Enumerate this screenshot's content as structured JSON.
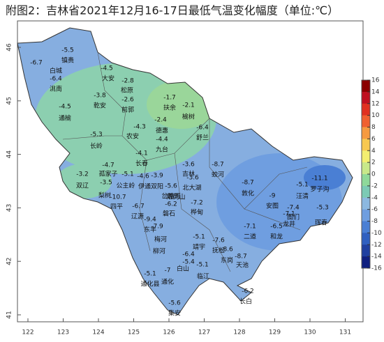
{
  "title": "附图2：吉林省2021年12月16-17日最低气温变化幅度（单位:℃）",
  "map": {
    "xticks": [
      122,
      123,
      124,
      125,
      126,
      127,
      128,
      129,
      130,
      131
    ],
    "yticks": [
      41,
      42,
      43,
      44,
      45,
      46
    ],
    "stations": [
      {
        "label": "镇赉",
        "value": -5.5
      },
      {
        "label": "白城",
        "value": -6.7
      },
      {
        "label": "洮南",
        "value": -6.4
      },
      {
        "label": "大安",
        "value": -4.5
      },
      {
        "label": "松原",
        "value": -2.8
      },
      {
        "label": "乾安",
        "value": -3.8
      },
      {
        "label": "前郭",
        "value": -2.6
      },
      {
        "label": "通榆",
        "value": -4.5
      },
      {
        "label": "扶余",
        "value": -1.7
      },
      {
        "label": "榆树",
        "value": -2.1
      },
      {
        "label": "德惠",
        "value": -2.4
      },
      {
        "label": "农安",
        "value": -4.3
      },
      {
        "label": "舒兰",
        "value": -6.4
      },
      {
        "label": "长岭",
        "value": -5.3
      },
      {
        "label": "九台",
        "value": -4.4
      },
      {
        "label": "长春",
        "value": -4.1
      },
      {
        "label": "吉林",
        "value": -3.6
      },
      {
        "label": "蛟河",
        "value": -8.7
      },
      {
        "label": "敦化",
        "value": -8.7
      },
      {
        "label": "双辽",
        "value": -3.2
      },
      {
        "label": "孤家子",
        "value": -4.7
      },
      {
        "label": "公主岭",
        "value": -3.5
      },
      {
        "value": -5.1
      },
      {
        "label": "伊通",
        "value": -4.6
      },
      {
        "label": "双阳",
        "value": -3.9
      },
      {
        "label": "岔路河",
        "value": -5.6
      },
      {
        "label": "北大湖",
        "value": -3.6
      },
      {
        "label": "梨树",
        "value": -10.7
      },
      {
        "label": "四平"
      },
      {
        "label": "辽源",
        "value": -6.7
      },
      {
        "label": "磐石",
        "value": -6.2
      },
      {
        "label": "烟筒山"
      },
      {
        "label": "桦甸",
        "value": -7.2
      },
      {
        "label": "安图",
        "value": -9
      },
      {
        "label": "汪清",
        "value": -5.1
      },
      {
        "label": "罗子沟",
        "value": -11.1
      },
      {
        "label": "图们",
        "value": -7.4
      },
      {
        "label": "珲春",
        "value": -5.3
      },
      {
        "label": "龙井",
        "value": -7.1
      },
      {
        "label": "东丰",
        "value": -9.4
      },
      {
        "label": "梅河",
        "value": -7.9
      },
      {
        "label": "二道",
        "value": -7.1
      },
      {
        "label": "和龙",
        "value": -6.5
      },
      {
        "label": "靖宇",
        "value": -5.1
      },
      {
        "label": "抚松",
        "value": -7.6
      },
      {
        "label": "东岗",
        "value": -8.6
      },
      {
        "label": "天池",
        "value": -8.7
      },
      {
        "label": "柳河"
      },
      {
        "label": "白山",
        "value": -6.4
      },
      {
        "value": -5.4
      },
      {
        "label": "临江",
        "value": -5.1
      },
      {
        "label": "通化县",
        "value": -5.1
      },
      {
        "label": "通化",
        "value": -7
      },
      {
        "label": "长白",
        "value": -6.2
      },
      {
        "label": "集安",
        "value": -5.6
      }
    ]
  },
  "colorbar": {
    "clim": [
      -16,
      16
    ],
    "ticks": [
      16,
      14,
      12,
      10,
      8,
      6,
      4,
      2,
      0,
      -2,
      -4,
      -6,
      -8,
      -10,
      -12,
      -14,
      -16
    ],
    "colors": [
      "#8b0000",
      "#c01020",
      "#e03020",
      "#f06030",
      "#f59a40",
      "#f8c850",
      "#f3ee70",
      "#c8e88a",
      "#8fd99a",
      "#7ccab5",
      "#8cb8e0",
      "#6f9ee0",
      "#4a7fd4",
      "#3060c0",
      "#2040a0",
      "#102080"
    ]
  }
}
